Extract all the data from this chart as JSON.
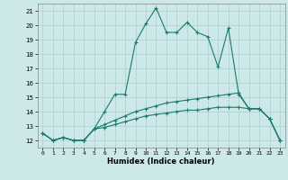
{
  "xlabel": "Humidex (Indice chaleur)",
  "background_color": "#cde8e8",
  "grid_color": "#aecece",
  "line_color": "#1a7a6e",
  "x_values": [
    0,
    1,
    2,
    3,
    4,
    5,
    6,
    7,
    8,
    9,
    10,
    11,
    12,
    13,
    14,
    15,
    16,
    17,
    18,
    19,
    20,
    21,
    22,
    23
  ],
  "series1": [
    12.5,
    12.0,
    12.2,
    12.0,
    12.0,
    12.8,
    14.0,
    15.2,
    15.2,
    18.8,
    20.1,
    21.2,
    19.5,
    19.5,
    20.2,
    19.5,
    19.2,
    17.1,
    19.8,
    15.2,
    14.2,
    14.2,
    13.5,
    12.0
  ],
  "series2": [
    12.5,
    12.0,
    12.2,
    12.0,
    12.0,
    12.8,
    13.1,
    13.4,
    13.7,
    14.0,
    14.2,
    14.4,
    14.6,
    14.7,
    14.8,
    14.9,
    15.0,
    15.1,
    15.2,
    15.3,
    14.2,
    14.2,
    13.5,
    12.0
  ],
  "series3": [
    12.5,
    12.0,
    12.2,
    12.0,
    12.0,
    12.8,
    12.9,
    13.1,
    13.3,
    13.5,
    13.7,
    13.8,
    13.9,
    14.0,
    14.1,
    14.1,
    14.2,
    14.3,
    14.3,
    14.3,
    14.2,
    14.2,
    13.5,
    12.0
  ],
  "xlim": [
    -0.5,
    23.5
  ],
  "ylim": [
    11.5,
    21.5
  ],
  "yticks": [
    12,
    13,
    14,
    15,
    16,
    17,
    18,
    19,
    20,
    21
  ],
  "xticks": [
    0,
    1,
    2,
    3,
    4,
    5,
    6,
    7,
    8,
    9,
    10,
    11,
    12,
    13,
    14,
    15,
    16,
    17,
    18,
    19,
    20,
    21,
    22,
    23
  ]
}
